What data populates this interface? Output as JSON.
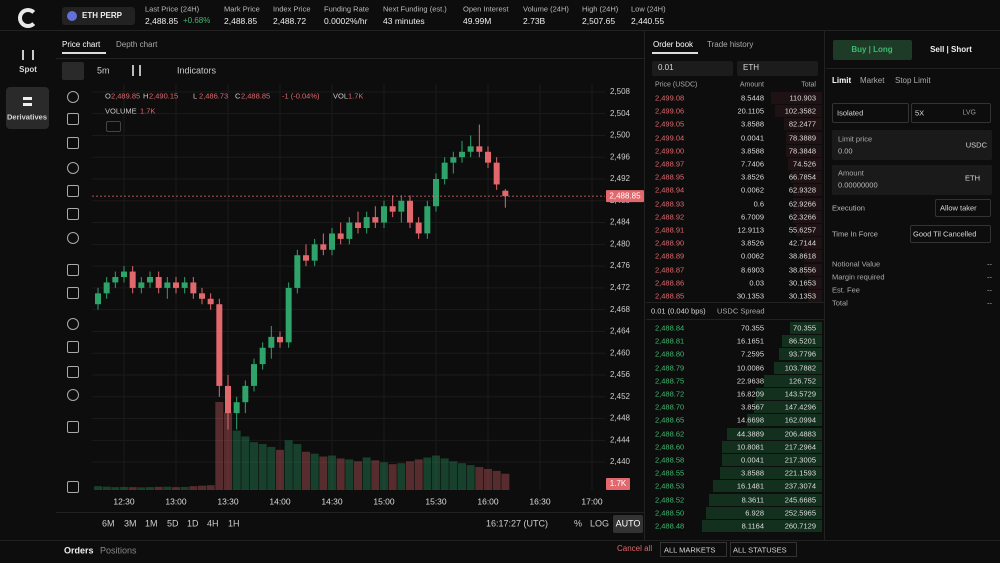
{
  "sidebar": {
    "items": [
      "Spot",
      "Derivatives"
    ]
  },
  "header": {
    "market": "ETH PERP",
    "stats": [
      {
        "label": "Last Price (24H)",
        "value": "2,488.85",
        "change": "+0.68%"
      },
      {
        "label": "Mark Price",
        "value": "2,488.85"
      },
      {
        "label": "Index Price",
        "value": "2,488.72"
      },
      {
        "label": "Funding Rate",
        "value": "0.0002%/hr"
      },
      {
        "label": "Next Funding (est.)",
        "value": "43 minutes"
      },
      {
        "label": "Open Interest",
        "value": "49.99M"
      },
      {
        "label": "Volume (24H)",
        "value": "2.73B"
      },
      {
        "label": "High (24H)",
        "value": "2,507.65"
      },
      {
        "label": "Low (24H)",
        "value": "2,440.55"
      }
    ]
  },
  "chart_panel": {
    "tabs": [
      "Price chart",
      "Depth chart"
    ],
    "interval": "5m",
    "indicators": "Indicators",
    "ohlc": {
      "o_label": "O",
      "o": "2,489.85",
      "h_label": "H",
      "h": "2,490.15",
      "l_label": "L",
      "l": "2,486.73",
      "c_label": "C",
      "c": "2,488.85",
      "change": "-1 (-0.04%)",
      "vol_label": "VOL",
      "vol": "1.7K"
    },
    "volume_label": "VOLUME",
    "volume_value": "1.7K",
    "last_price_tag": "2,488.85",
    "last_volume_tag": "1.7K",
    "ranges": [
      "6M",
      "3M",
      "1M",
      "5D",
      "1D",
      "4H",
      "1H"
    ],
    "clock": "16:17:27 (UTC)",
    "scale_buttons": [
      "%",
      "LOG",
      "AUTO"
    ]
  },
  "chart_data": {
    "type": "candlestick",
    "x": [
      "12:15",
      "12:20",
      "12:25",
      "12:30",
      "12:35",
      "12:40",
      "12:45",
      "12:50",
      "12:55",
      "13:00",
      "13:05",
      "13:10",
      "13:15",
      "13:20",
      "13:25",
      "13:30",
      "13:35",
      "13:40",
      "13:45",
      "13:50",
      "13:55",
      "14:00",
      "14:05",
      "14:10",
      "14:15",
      "14:20",
      "14:25",
      "14:30",
      "14:35",
      "14:40",
      "14:45",
      "14:50",
      "14:55",
      "15:00",
      "15:05",
      "15:10",
      "15:15",
      "15:20",
      "15:25",
      "15:30",
      "15:35",
      "15:40",
      "15:45",
      "15:50",
      "15:55",
      "16:00",
      "16:05",
      "16:10"
    ],
    "open": [
      2469,
      2471,
      2473,
      2474,
      2475,
      2472,
      2473,
      2474,
      2472,
      2473,
      2472,
      2473,
      2471,
      2470,
      2469,
      2454,
      2449,
      2451,
      2454,
      2458,
      2461,
      2463,
      2462,
      2472,
      2478,
      2477,
      2480,
      2479,
      2482,
      2481,
      2484,
      2483,
      2485,
      2484,
      2487,
      2486,
      2488,
      2484,
      2482,
      2487,
      2492,
      2495,
      2496,
      2497,
      2498,
      2497,
      2495,
      2489.85
    ],
    "high": [
      2472,
      2474,
      2475,
      2476,
      2476,
      2474,
      2475,
      2475,
      2474,
      2474,
      2474,
      2474,
      2472,
      2471,
      2470,
      2456,
      2452,
      2455,
      2459,
      2462,
      2465,
      2464,
      2473,
      2479,
      2480,
      2481,
      2482,
      2483,
      2484,
      2485,
      2486,
      2486,
      2487,
      2488,
      2489,
      2489,
      2489,
      2485,
      2488,
      2493,
      2496,
      2497,
      2499,
      2500,
      2502,
      2498,
      2496,
      2490.15
    ],
    "low": [
      2468,
      2470,
      2472,
      2473,
      2471,
      2471,
      2472,
      2471,
      2470,
      2471,
      2471,
      2470,
      2469,
      2468,
      2452,
      2446,
      2446,
      2449,
      2453,
      2457,
      2459,
      2461,
      2461,
      2471,
      2476,
      2476,
      2478,
      2478,
      2480,
      2480,
      2482,
      2482,
      2483,
      2483,
      2485,
      2484,
      2483,
      2481,
      2481,
      2486,
      2491,
      2493,
      2495,
      2496,
      2496,
      2494,
      2490,
      2486.73
    ],
    "close": [
      2471,
      2473,
      2474,
      2475,
      2472,
      2473,
      2474,
      2472,
      2473,
      2472,
      2473,
      2471,
      2470,
      2469,
      2454,
      2449,
      2451,
      2454,
      2458,
      2461,
      2463,
      2462,
      2472,
      2478,
      2477,
      2480,
      2479,
      2482,
      2481,
      2484,
      2483,
      2485,
      2484,
      2487,
      2486,
      2488,
      2484,
      2482,
      2487,
      2492,
      2495,
      2496,
      2497,
      2498,
      2497,
      2495,
      2491,
      2488.85
    ],
    "volume": [
      400,
      350,
      300,
      320,
      300,
      280,
      300,
      330,
      350,
      300,
      320,
      400,
      450,
      500,
      9200,
      8100,
      6200,
      5600,
      5000,
      4800,
      4500,
      4200,
      5200,
      4800,
      4000,
      3800,
      3500,
      3600,
      3300,
      3200,
      3000,
      3400,
      3100,
      2900,
      2700,
      2800,
      3000,
      3200,
      3400,
      3600,
      3300,
      3000,
      2800,
      2600,
      2400,
      2200,
      2000,
      1700
    ],
    "ylim": [
      2438,
      2510
    ],
    "yticks": [
      {
        "value": 2440,
        "label": "2,440"
      },
      {
        "value": 2444,
        "label": "2,444"
      },
      {
        "value": 2448,
        "label": "2,448"
      },
      {
        "value": 2452,
        "label": "2,452"
      },
      {
        "value": 2456,
        "label": "2,456"
      },
      {
        "value": 2460,
        "label": "2,460"
      },
      {
        "value": 2464,
        "label": "2,464"
      },
      {
        "value": 2468,
        "label": "2,468"
      },
      {
        "value": 2472,
        "label": "2,472"
      },
      {
        "value": 2476,
        "label": "2,476"
      },
      {
        "value": 2480,
        "label": "2,480"
      },
      {
        "value": 2484,
        "label": "2,484"
      },
      {
        "value": 2488,
        "label": "2,488"
      },
      {
        "value": 2492,
        "label": "2,492"
      },
      {
        "value": 2496,
        "label": "2,496"
      },
      {
        "value": 2500,
        "label": "2,500"
      },
      {
        "value": 2504,
        "label": "2,504"
      },
      {
        "value": 2508,
        "label": "2,508"
      }
    ],
    "xticks": [
      "12:30",
      "13:00",
      "13:30",
      "14:00",
      "14:30",
      "15:00",
      "15:30",
      "16:00",
      "16:30",
      "17:00"
    ],
    "up_color": "#2ea36a",
    "down_color": "#e2686d",
    "grid": true
  },
  "order_book": {
    "tabs": [
      "Order book",
      "Trade history"
    ],
    "size_select": "0.01",
    "asset_select": "ETH",
    "columns": [
      "Price (USDC)",
      "Amount",
      "Total"
    ],
    "asks": [
      [
        "2,499.08",
        8.5448,
        110.903
      ],
      [
        "2,499.06",
        20.1105,
        102.3582
      ],
      [
        "2,499.05",
        3.8588,
        82.2477
      ],
      [
        "2,499.04",
        0.0041,
        78.3889
      ],
      [
        "2,499.00",
        3.8588,
        78.3848
      ],
      [
        "2,488.97",
        7.7406,
        74.526
      ],
      [
        "2,488.95",
        3.8526,
        66.7854
      ],
      [
        "2,488.94",
        0.0062,
        62.9328
      ],
      [
        "2,488.93",
        0.6,
        62.9266
      ],
      [
        "2,488.92",
        6.7009,
        62.3266
      ],
      [
        "2,488.91",
        12.9113,
        55.6257
      ],
      [
        "2,488.90",
        3.8526,
        42.7144
      ],
      [
        "2,488.89",
        0.0062,
        38.8618
      ],
      [
        "2,488.87",
        8.6903,
        38.8556
      ],
      [
        "2,488.86",
        0.03,
        30.1653
      ],
      [
        "2,488.85",
        30.1353,
        30.1353
      ]
    ],
    "spread": {
      "value": "0.01 (0.040 bps)",
      "label": "USDC Spread"
    },
    "bids": [
      [
        "2,488.84",
        70.355,
        70.355
      ],
      [
        "2,488.81",
        16.1651,
        86.5201
      ],
      [
        "2,488.80",
        7.2595,
        93.7796
      ],
      [
        "2,488.79",
        10.0086,
        103.7882
      ],
      [
        "2,488.75",
        22.9638,
        126.752
      ],
      [
        "2,488.72",
        16.8209,
        143.5729
      ],
      [
        "2,488.70",
        3.8567,
        147.4296
      ],
      [
        "2,488.65",
        14.6698,
        162.0994
      ],
      [
        "2,488.62",
        44.3889,
        206.4883
      ],
      [
        "2,488.60",
        10.8081,
        217.2964
      ],
      [
        "2,488.58",
        0.0041,
        217.3005
      ],
      [
        "2,488.55",
        3.8588,
        221.1593
      ],
      [
        "2,488.53",
        16.1481,
        237.3074
      ],
      [
        "2,488.52",
        8.3611,
        245.6685
      ],
      [
        "2,488.50",
        6.928,
        252.5965
      ],
      [
        "2,488.48",
        8.1164,
        260.7129
      ]
    ]
  },
  "order_form": {
    "tabs": [
      "Buy | Long",
      "Sell | Short"
    ],
    "order_types": [
      "Limit",
      "Market",
      "Stop Limit"
    ],
    "margin_mode": "Isolated",
    "leverage": "5X",
    "leverage_unit": "LVG",
    "limit_price": {
      "label": "Limit price",
      "value": "0.00",
      "unit": "USDC"
    },
    "amount": {
      "label": "Amount",
      "value": "0.00000000",
      "unit": "ETH"
    },
    "execution": {
      "label": "Execution",
      "value": "Allow taker"
    },
    "time_in_force": {
      "label": "Time In Force",
      "value": "Good Til Cancelled"
    },
    "summary": [
      {
        "label": "Notional Value",
        "value": "--"
      },
      {
        "label": "Margin required",
        "value": "--"
      },
      {
        "label": "Est. Fee",
        "value": "--"
      },
      {
        "label": "Total",
        "value": "--"
      }
    ]
  },
  "bottom": {
    "tabs": [
      "Orders",
      "Positions"
    ],
    "cancel_all": "Cancel all",
    "filters": [
      "ALL MARKETS",
      "ALL STATUSES"
    ]
  }
}
